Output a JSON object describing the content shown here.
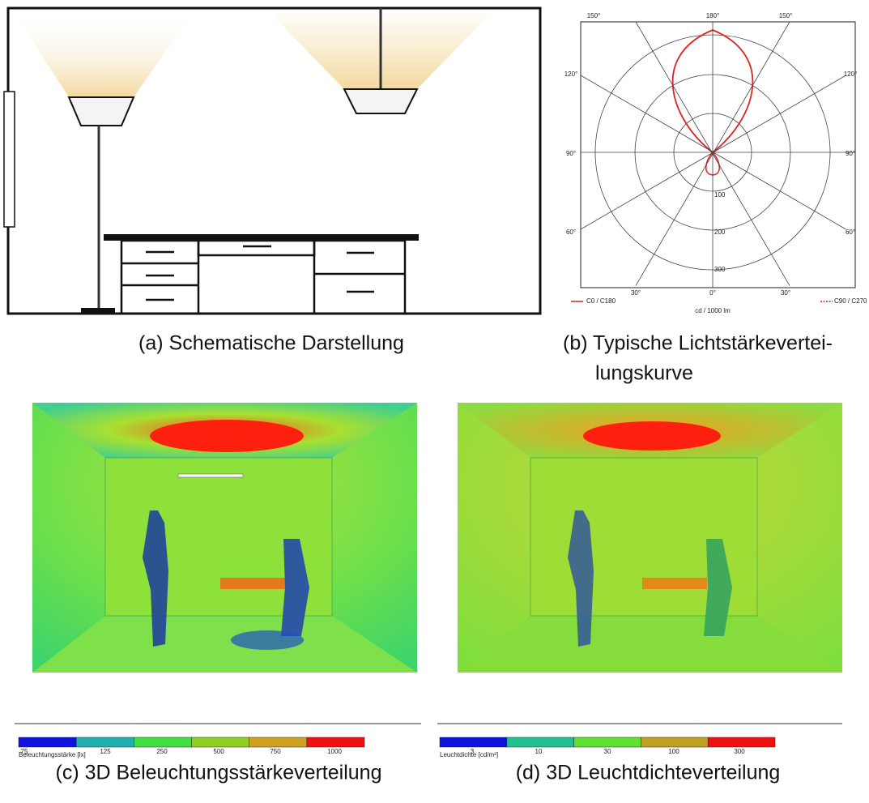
{
  "figure": {
    "a": {
      "caption": "(a) Schematische Darstellung"
    },
    "b": {
      "caption_lines": [
        "(b) Typische  Lichtstärkevertei-",
        "lungskurve"
      ],
      "angle_labels": [
        "150°",
        "180°",
        "150°",
        "120°",
        "120°",
        "90°",
        "90°",
        "60°",
        "60°",
        "30°",
        "0°",
        "30°"
      ],
      "radial_labels": [
        "100",
        "200",
        "300"
      ],
      "legend": [
        "C0 / C180",
        "C90 / C270"
      ],
      "unit": "cd / 1000 lm"
    },
    "c": {
      "caption": "(c) 3D Beleuchtungsstärkeverteilung",
      "scale_label": "Beleuchtungsstärke [lx]",
      "scale_ticks": [
        "75",
        "125",
        "250",
        "500",
        "750",
        "1000"
      ]
    },
    "d": {
      "caption": "(d) 3D Leuchtdichteverteilung",
      "scale_label": "Leuchtdichte [cd/m²]",
      "scale_ticks": [
        "3",
        "10",
        "30",
        "100",
        "300"
      ]
    }
  }
}
